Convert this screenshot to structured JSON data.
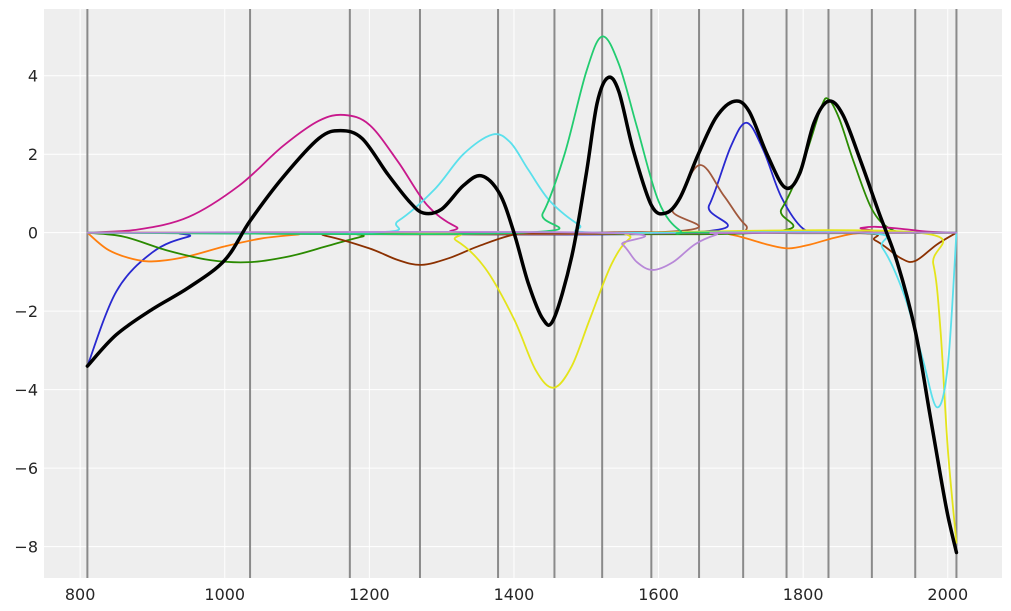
{
  "chart_data": {
    "type": "line",
    "title": "",
    "xlabel": "",
    "ylabel": "",
    "xlim": [
      750,
      2075
    ],
    "ylim": [
      -8.8,
      5.7
    ],
    "xticks": [
      800,
      1000,
      1200,
      1400,
      1600,
      1800,
      2000
    ],
    "xtick_labels": [
      "800",
      "1000",
      "1200",
      "1400",
      "1600",
      "1800",
      "2000"
    ],
    "yticks": [
      4,
      2,
      0,
      -2,
      -4,
      -6,
      -8
    ],
    "ytick_labels": [
      "4",
      "2",
      "0",
      "−2",
      "−4",
      "−6",
      "−8"
    ],
    "grid": true,
    "background": "#eeeeee",
    "knots": [
      810,
      1035,
      1173,
      1270,
      1378,
      1456,
      1522,
      1590,
      1656,
      1717,
      1777,
      1835,
      1895,
      1955,
      2012
    ],
    "knot_color": "#8a8a8a",
    "series": [
      {
        "color": "#2828d0",
        "points": [
          [
            810,
            -3.4
          ],
          [
            850,
            -1.5
          ],
          [
            900,
            -0.5
          ],
          [
            950,
            -0.1
          ],
          [
            1000,
            0
          ],
          [
            1640,
            0
          ],
          [
            1670,
            0.7
          ],
          [
            1700,
            2.2
          ],
          [
            1722,
            2.8
          ],
          [
            1745,
            2.1
          ],
          [
            1770,
            0.9
          ],
          [
            1800,
            0.1
          ],
          [
            1830,
            0
          ]
        ]
      },
      {
        "color": "#ff7f0e",
        "points": [
          [
            810,
            0
          ],
          [
            840,
            -0.45
          ],
          [
            880,
            -0.7
          ],
          [
            910,
            -0.72
          ],
          [
            950,
            -0.6
          ],
          [
            1000,
            -0.35
          ],
          [
            1050,
            -0.15
          ],
          [
            1100,
            -0.05
          ],
          [
            1150,
            0
          ],
          [
            1650,
            0
          ],
          [
            1700,
            -0.05
          ],
          [
            1750,
            -0.3
          ],
          [
            1780,
            -0.4
          ],
          [
            1810,
            -0.3
          ],
          [
            1850,
            -0.1
          ],
          [
            1890,
            0
          ],
          [
            2012,
            0
          ]
        ]
      },
      {
        "color": "#2a8a00",
        "points": [
          [
            810,
            0
          ],
          [
            860,
            -0.1
          ],
          [
            920,
            -0.45
          ],
          [
            980,
            -0.7
          ],
          [
            1035,
            -0.75
          ],
          [
            1090,
            -0.6
          ],
          [
            1140,
            -0.35
          ],
          [
            1190,
            -0.1
          ],
          [
            1230,
            0
          ],
          [
            1740,
            0
          ],
          [
            1770,
            0.6
          ],
          [
            1800,
            1.8
          ],
          [
            1825,
            3.2
          ],
          [
            1835,
            3.4
          ],
          [
            1850,
            2.9
          ],
          [
            1870,
            1.8
          ],
          [
            1895,
            0.6
          ],
          [
            1920,
            0.1
          ],
          [
            1950,
            0
          ],
          [
            2012,
            0
          ]
        ]
      },
      {
        "color": "#c8188c",
        "points": [
          [
            810,
            0
          ],
          [
            880,
            0.08
          ],
          [
            950,
            0.4
          ],
          [
            1020,
            1.2
          ],
          [
            1080,
            2.2
          ],
          [
            1130,
            2.85
          ],
          [
            1165,
            3.0
          ],
          [
            1200,
            2.75
          ],
          [
            1240,
            1.8
          ],
          [
            1280,
            0.7
          ],
          [
            1320,
            0.15
          ],
          [
            1360,
            0
          ],
          [
            1850,
            0
          ],
          [
            1880,
            0.12
          ],
          [
            1900,
            0.15
          ],
          [
            1935,
            0.1
          ],
          [
            1970,
            0.03
          ],
          [
            2012,
            0
          ]
        ]
      },
      {
        "color": "#a0583c",
        "points": [
          [
            810,
            0
          ],
          [
            1590,
            0
          ],
          [
            1620,
            0.6
          ],
          [
            1656,
            1.72
          ],
          [
            1690,
            0.95
          ],
          [
            1720,
            0.2
          ],
          [
            1750,
            0
          ],
          [
            2012,
            0
          ]
        ]
      },
      {
        "color": "#8b3000",
        "points": [
          [
            810,
            0
          ],
          [
            1100,
            0
          ],
          [
            1140,
            -0.08
          ],
          [
            1200,
            -0.4
          ],
          [
            1240,
            -0.7
          ],
          [
            1272,
            -0.82
          ],
          [
            1310,
            -0.65
          ],
          [
            1350,
            -0.35
          ],
          [
            1400,
            -0.05
          ],
          [
            1450,
            0
          ],
          [
            1860,
            0
          ],
          [
            1900,
            -0.2
          ],
          [
            1935,
            -0.65
          ],
          [
            1955,
            -0.72
          ],
          [
            1985,
            -0.3
          ],
          [
            2012,
            0
          ]
        ]
      },
      {
        "color": "#e4e41a",
        "points": [
          [
            810,
            0
          ],
          [
            1280,
            0
          ],
          [
            1320,
            -0.2
          ],
          [
            1360,
            -0.9
          ],
          [
            1400,
            -2.2
          ],
          [
            1430,
            -3.5
          ],
          [
            1455,
            -3.95
          ],
          [
            1480,
            -3.4
          ],
          [
            1505,
            -2.2
          ],
          [
            1535,
            -0.8
          ],
          [
            1560,
            -0.15
          ],
          [
            1590,
            0
          ],
          [
            1960,
            0
          ],
          [
            1980,
            -0.8
          ],
          [
            1990,
            -2.5
          ],
          [
            2000,
            -5.5
          ],
          [
            2012,
            -7.9
          ]
        ]
      },
      {
        "color": "#5ae0ec",
        "points": [
          [
            810,
            0
          ],
          [
            1200,
            0
          ],
          [
            1240,
            0.3
          ],
          [
            1290,
            1.1
          ],
          [
            1330,
            2.0
          ],
          [
            1370,
            2.5
          ],
          [
            1395,
            2.3
          ],
          [
            1420,
            1.6
          ],
          [
            1450,
            0.8
          ],
          [
            1490,
            0.2
          ],
          [
            1520,
            0
          ],
          [
            1880,
            0
          ],
          [
            1910,
            -0.4
          ],
          [
            1940,
            -1.6
          ],
          [
            1965,
            -3.2
          ],
          [
            1985,
            -4.45
          ],
          [
            2000,
            -3.4
          ],
          [
            2012,
            0
          ]
        ]
      },
      {
        "color": "#22cc70",
        "points": [
          [
            810,
            0
          ],
          [
            1410,
            0
          ],
          [
            1440,
            0.5
          ],
          [
            1470,
            2.0
          ],
          [
            1500,
            4.1
          ],
          [
            1522,
            5.0
          ],
          [
            1545,
            4.3
          ],
          [
            1570,
            2.7
          ],
          [
            1600,
            0.8
          ],
          [
            1630,
            0.05
          ],
          [
            1660,
            0
          ],
          [
            2012,
            0
          ]
        ]
      },
      {
        "color": "#b888d8",
        "points": [
          [
            810,
            0
          ],
          [
            1520,
            0
          ],
          [
            1550,
            -0.3
          ],
          [
            1570,
            -0.75
          ],
          [
            1592,
            -0.95
          ],
          [
            1620,
            -0.75
          ],
          [
            1650,
            -0.3
          ],
          [
            1680,
            -0.05
          ],
          [
            1700,
            0
          ],
          [
            2012,
            0
          ]
        ]
      },
      {
        "color": "#000000",
        "width": 3.5,
        "points": [
          [
            810,
            -3.4
          ],
          [
            850,
            -2.6
          ],
          [
            900,
            -1.95
          ],
          [
            950,
            -1.4
          ],
          [
            1000,
            -0.7
          ],
          [
            1035,
            0.3
          ],
          [
            1080,
            1.4
          ],
          [
            1130,
            2.4
          ],
          [
            1160,
            2.6
          ],
          [
            1190,
            2.4
          ],
          [
            1225,
            1.5
          ],
          [
            1255,
            0.8
          ],
          [
            1275,
            0.5
          ],
          [
            1300,
            0.6
          ],
          [
            1330,
            1.2
          ],
          [
            1355,
            1.45
          ],
          [
            1380,
            1.0
          ],
          [
            1400,
            0
          ],
          [
            1420,
            -1.3
          ],
          [
            1440,
            -2.2
          ],
          [
            1455,
            -2.2
          ],
          [
            1480,
            -0.6
          ],
          [
            1500,
            1.5
          ],
          [
            1515,
            3.3
          ],
          [
            1530,
            3.95
          ],
          [
            1545,
            3.6
          ],
          [
            1565,
            2.1
          ],
          [
            1590,
            0.7
          ],
          [
            1610,
            0.5
          ],
          [
            1630,
            0.9
          ],
          [
            1655,
            2.0
          ],
          [
            1680,
            2.95
          ],
          [
            1705,
            3.35
          ],
          [
            1725,
            3.1
          ],
          [
            1750,
            2.0
          ],
          [
            1775,
            1.15
          ],
          [
            1795,
            1.5
          ],
          [
            1815,
            2.8
          ],
          [
            1835,
            3.35
          ],
          [
            1855,
            3.0
          ],
          [
            1880,
            1.8
          ],
          [
            1905,
            0.5
          ],
          [
            1930,
            -0.75
          ],
          [
            1955,
            -2.5
          ],
          [
            1975,
            -4.6
          ],
          [
            1990,
            -6.2
          ],
          [
            2000,
            -7.2
          ],
          [
            2012,
            -8.15
          ]
        ]
      }
    ]
  }
}
